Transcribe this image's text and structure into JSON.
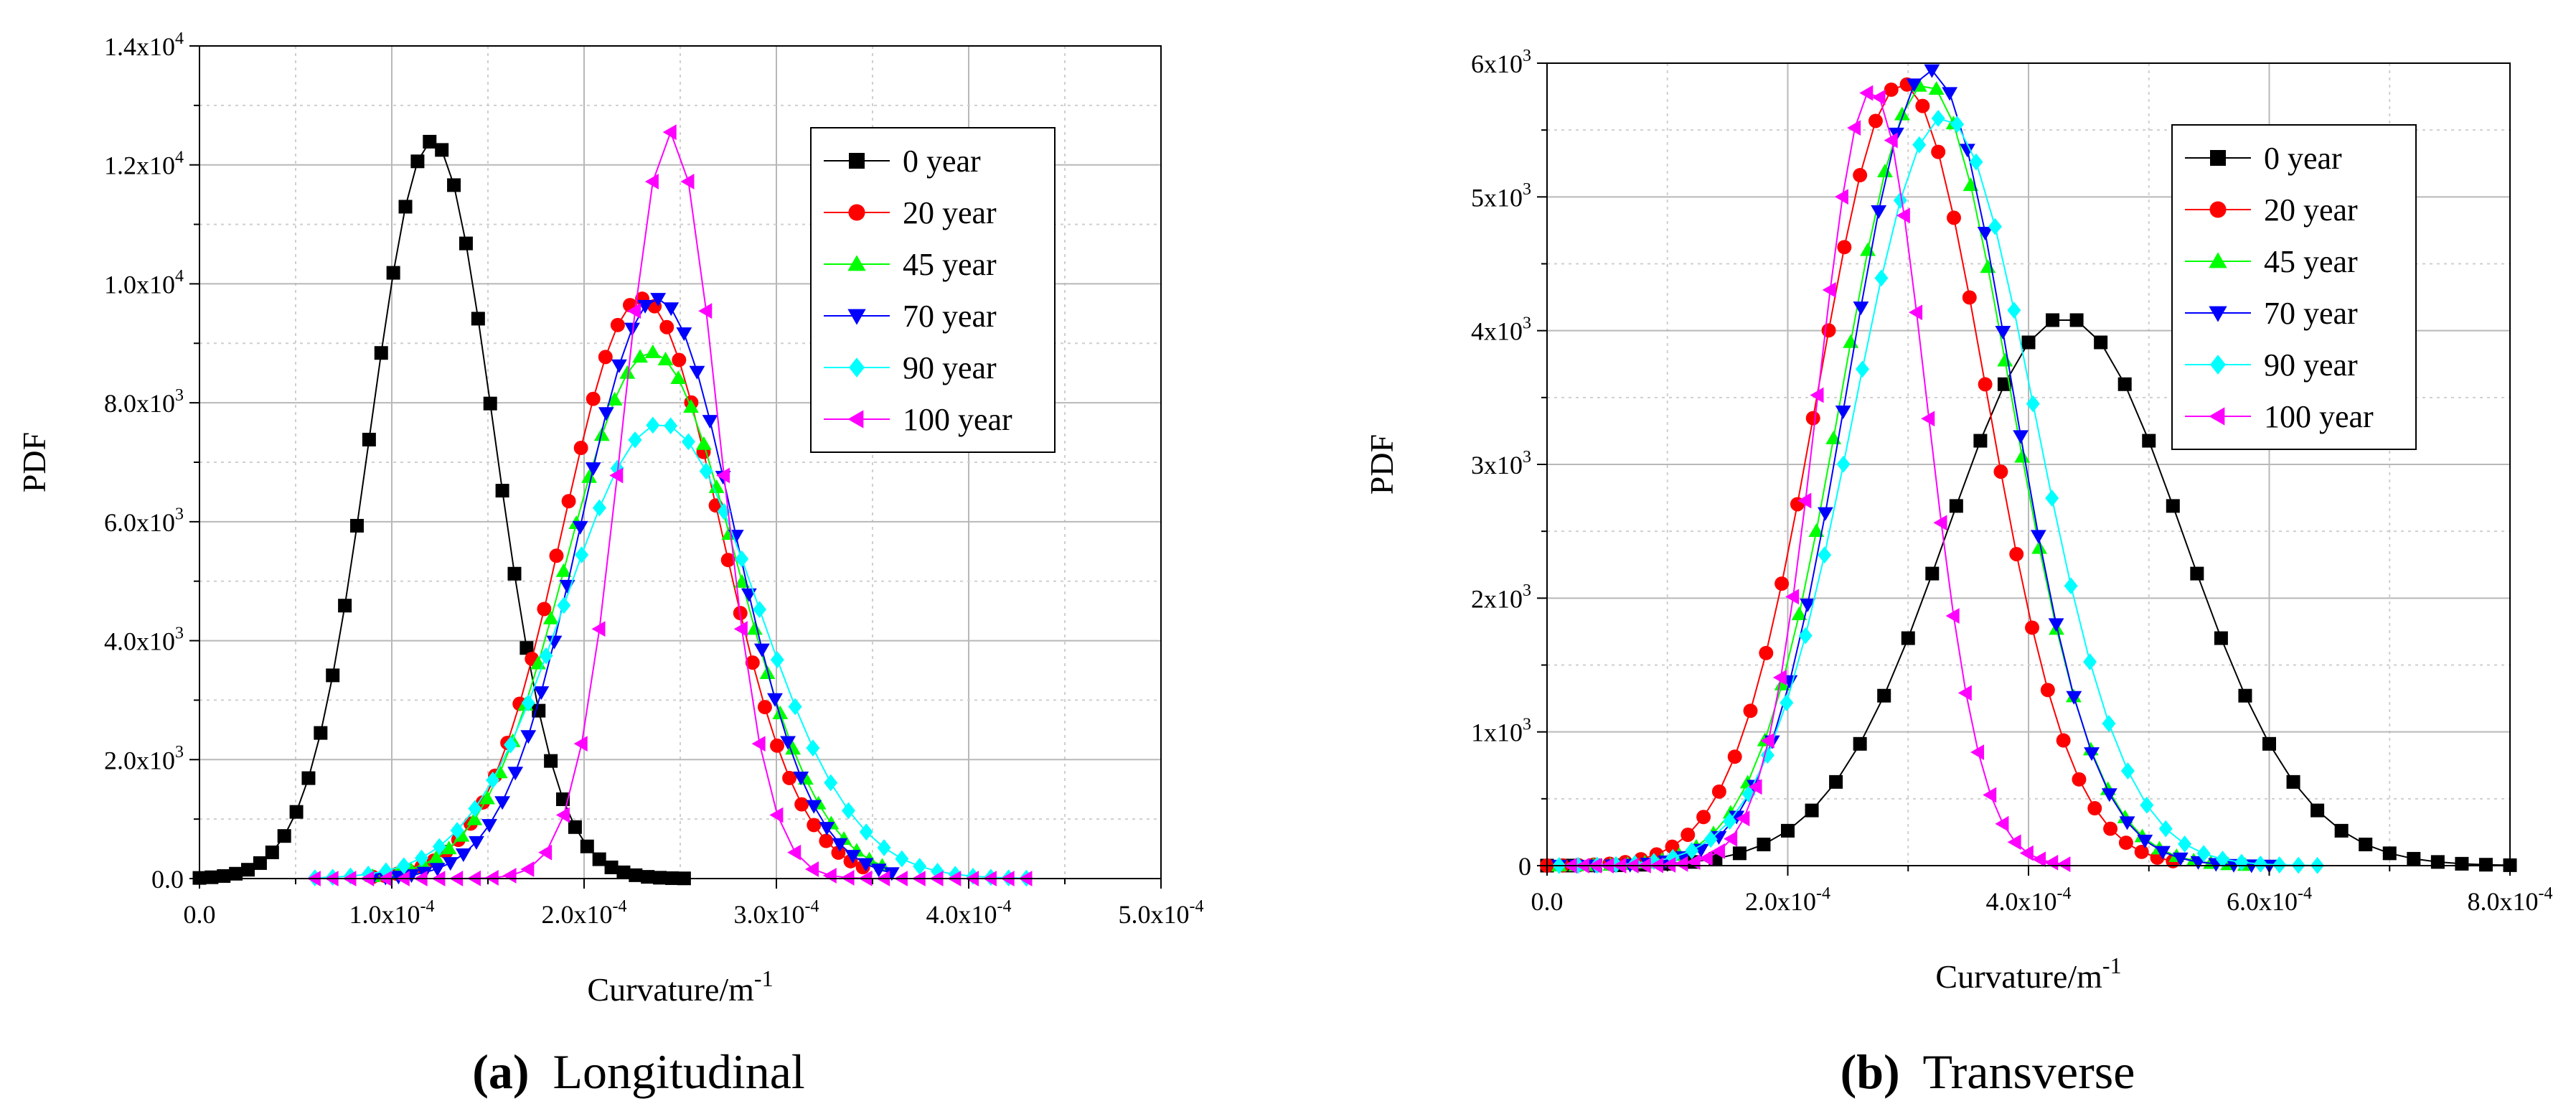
{
  "panels": [
    {
      "caption_label": "(a)",
      "caption_text": "Longitudinal",
      "chart_data": {
        "type": "scatter",
        "xlabel": "Curvature/m⁻¹",
        "ylabel": "PDF",
        "xlim": [
          0,
          0.0005
        ],
        "ylim": [
          0,
          14000
        ],
        "x_ticks": [
          0,
          0.0001,
          0.0002,
          0.0003,
          0.0004,
          0.0005
        ],
        "x_tick_labels": [
          "0.0",
          "1.0x10-4",
          "2.0x10-4",
          "3.0x10-4",
          "4.0x10-4",
          "5.0x10-4"
        ],
        "y_ticks": [
          0,
          2000,
          4000,
          6000,
          8000,
          10000,
          12000,
          14000
        ],
        "y_tick_labels": [
          "0.0",
          "2.0x103",
          "4.0x103",
          "6.0x103",
          "8.0x103",
          "1.0x104",
          "1.2x104",
          "1.4x104"
        ],
        "grid": true,
        "legend_position": "top-right",
        "series": [
          {
            "name": "0 year",
            "color": "#000000",
            "marker": "square",
            "mu": 0.000121,
            "sigma": 3.22e-05,
            "peak": 12400,
            "x_start": 0.0,
            "x_end": 0.000252
          },
          {
            "name": "20 year",
            "color": "#ff0000",
            "marker": "circle",
            "mu": 0.00023,
            "sigma": 4.1e-05,
            "peak": 9750,
            "x_start": 9e-05,
            "x_end": 0.000345
          },
          {
            "name": "45 year",
            "color": "#00ff00",
            "marker": "triangle-up",
            "mu": 0.000235,
            "sigma": 4.4e-05,
            "peak": 8850,
            "x_start": 9e-05,
            "x_end": 0.000355
          },
          {
            "name": "70 year",
            "color": "#0000ff",
            "marker": "triangle-down",
            "mu": 0.000238,
            "sigma": 4e-05,
            "peak": 9750,
            "x_start": 9e-05,
            "x_end": 0.00036
          },
          {
            "name": "90 year",
            "color": "#00ffff",
            "marker": "diamond",
            "mu": 0.00024,
            "sigma": 5e-05,
            "peak": 7650,
            "x_start": 6e-05,
            "x_end": 0.00043
          },
          {
            "name": "100 year",
            "color": "#ff00ff",
            "marker": "triangle-left",
            "mu": 0.000245,
            "sigma": 2.5e-05,
            "peak": 12550,
            "x_start": 6e-05,
            "x_end": 0.00043
          }
        ]
      }
    },
    {
      "caption_label": "(b)",
      "caption_text": "Transverse",
      "chart_data": {
        "type": "scatter",
        "xlabel": "Curvature/m⁻¹",
        "ylabel": "PDF",
        "xlim": [
          0,
          0.0008
        ],
        "ylim": [
          0,
          6000
        ],
        "x_ticks": [
          0,
          0.0002,
          0.0004,
          0.0006,
          0.0008
        ],
        "x_tick_labels": [
          "0.0",
          "2.0x10-4",
          "4.0x10-4",
          "6.0x10-4",
          "8.0x10-4"
        ],
        "y_ticks": [
          0,
          1000,
          2000,
          3000,
          4000,
          5000,
          6000
        ],
        "y_tick_labels": [
          "0",
          "1x103",
          "2x103",
          "3x103",
          "4x103",
          "5x103",
          "6x103"
        ],
        "grid": true,
        "legend_position": "top-right",
        "series": [
          {
            "name": "0 year",
            "color": "#000000",
            "marker": "square",
            "mu": 0.00043,
            "sigma": 9.8e-05,
            "peak": 4100,
            "x_start": 0.0,
            "x_end": 0.0008
          },
          {
            "name": "20 year",
            "color": "#ff0000",
            "marker": "circle",
            "mu": 0.000295,
            "sigma": 7e-05,
            "peak": 5850,
            "x_start": 0.0,
            "x_end": 0.00052
          },
          {
            "name": "45 year",
            "color": "#00ff00",
            "marker": "triangle-up",
            "mu": 0.000315,
            "sigma": 7e-05,
            "peak": 5850,
            "x_start": 1e-05,
            "x_end": 0.00058
          },
          {
            "name": "70 year",
            "color": "#0000ff",
            "marker": "triangle-down",
            "mu": 0.000318,
            "sigma": 6.8e-05,
            "peak": 5950,
            "x_start": 1e-05,
            "x_end": 0.0006
          },
          {
            "name": "90 year",
            "color": "#00ffff",
            "marker": "diamond",
            "mu": 0.00033,
            "sigma": 7.5e-05,
            "peak": 5600,
            "x_start": 1e-05,
            "x_end": 0.00064
          },
          {
            "name": "100 year",
            "color": "#ff00ff",
            "marker": "triangle-left",
            "mu": 0.00027,
            "sigma": 4.5e-05,
            "peak": 5800,
            "x_start": 2e-05,
            "x_end": 0.00043
          }
        ]
      }
    }
  ]
}
